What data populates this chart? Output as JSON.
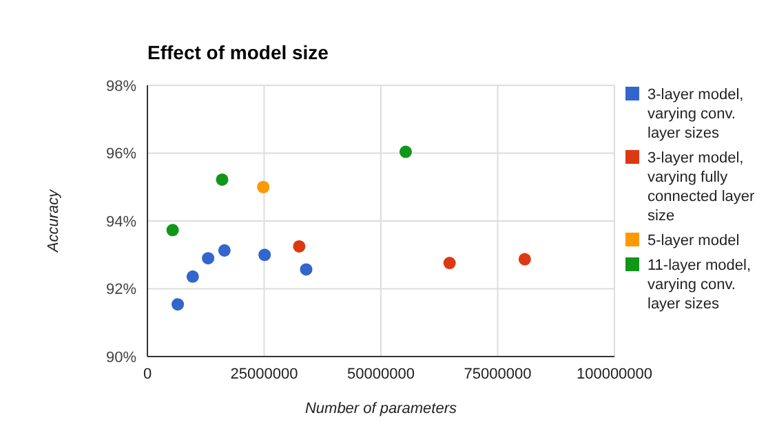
{
  "chart_data": {
    "type": "scatter",
    "title": "Effect of model size",
    "xlabel": "Number of parameters",
    "ylabel": "Accuracy",
    "series": [
      {
        "name": "3-layer model, varying conv. layer sizes",
        "color": "#3366cc",
        "x": [
          6500000,
          9700000,
          13000000,
          16500000,
          25100000,
          34000000
        ],
        "values": [
          91.54,
          92.36,
          92.9,
          93.13,
          93.0,
          92.57
        ]
      },
      {
        "name": "3-layer model, varying fully connected layer size",
        "color": "#dc3912",
        "x": [
          32500000,
          64700000,
          80800000
        ],
        "values": [
          93.25,
          92.76,
          92.87
        ]
      },
      {
        "name": "5-layer model",
        "color": "#ff9900",
        "x": [
          24800000
        ],
        "values": [
          95.0
        ]
      },
      {
        "name": "11-layer model, varying conv. layer sizes",
        "color": "#109618",
        "x": [
          5400000,
          16000000,
          55300000
        ],
        "values": [
          93.73,
          95.22,
          96.04
        ]
      }
    ],
    "xlim": [
      0,
      100000000
    ],
    "xticks": [
      0,
      25000000,
      50000000,
      75000000,
      100000000
    ],
    "ylim": [
      90,
      98
    ],
    "yticks": [
      {
        "value": 90,
        "label": "90%"
      },
      {
        "value": 92,
        "label": "92%"
      },
      {
        "value": 94,
        "label": "94%"
      },
      {
        "value": 96,
        "label": "96%"
      },
      {
        "value": 98,
        "label": "98%"
      }
    ],
    "grid": true,
    "legend": "right",
    "marker": "circle"
  }
}
